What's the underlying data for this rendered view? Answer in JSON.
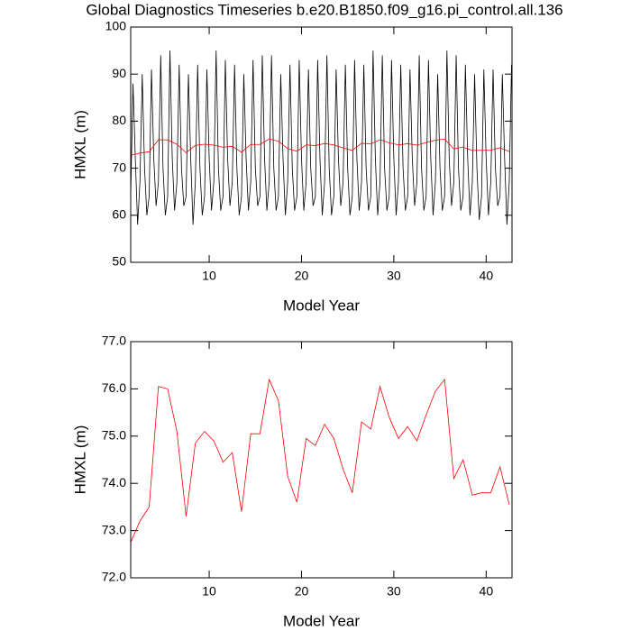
{
  "chart_data": [
    {
      "type": "line",
      "title": "Global Diagnostics Timeseries b.e20.B1850.f09_g16.pi_control.all.136",
      "x_label": "Model Year",
      "y_label": "HMXL (m)",
      "xlim": [
        1.5,
        42.8
      ],
      "ylim": [
        50,
        100
      ],
      "xticks": [
        10,
        20,
        30,
        40
      ],
      "yticks": [
        50,
        60,
        70,
        80,
        90,
        100
      ],
      "series": [
        {
          "color": "#000000",
          "x": [
            1.5,
            1.75,
            2,
            2.25,
            2.5,
            2.75,
            3,
            3.25,
            3.5,
            3.75,
            4,
            4.25,
            4.5,
            4.75,
            5,
            5.25,
            5.5,
            5.75,
            6,
            6.25,
            6.5,
            6.75,
            7,
            7.25,
            7.5,
            7.75,
            8,
            8.25,
            8.5,
            8.75,
            9,
            9.25,
            9.5,
            9.75,
            10,
            10.25,
            10.5,
            10.75,
            11,
            11.25,
            11.5,
            11.75,
            12,
            12.25,
            12.5,
            12.75,
            13,
            13.25,
            13.5,
            13.75,
            14,
            14.25,
            14.5,
            14.75,
            15,
            15.25,
            15.5,
            15.75,
            16,
            16.25,
            16.5,
            16.75,
            17,
            17.25,
            17.5,
            17.75,
            18,
            18.25,
            18.5,
            18.75,
            19,
            19.25,
            19.5,
            19.75,
            20,
            20.25,
            20.5,
            20.75,
            21,
            21.25,
            21.5,
            21.75,
            22,
            22.25,
            22.5,
            22.75,
            23,
            23.25,
            23.5,
            23.75,
            24,
            24.25,
            24.5,
            24.75,
            25,
            25.25,
            25.5,
            25.75,
            26,
            26.25,
            26.5,
            26.75,
            27,
            27.25,
            27.5,
            27.75,
            28,
            28.25,
            28.5,
            28.75,
            29,
            29.25,
            29.5,
            29.75,
            30,
            30.25,
            30.5,
            30.75,
            31,
            31.25,
            31.5,
            31.75,
            32,
            32.25,
            32.5,
            32.75,
            33,
            33.25,
            33.5,
            33.75,
            34,
            34.25,
            34.5,
            34.75,
            35,
            35.25,
            35.5,
            35.75,
            36,
            36.25,
            36.5,
            36.75,
            37,
            37.25,
            37.5,
            37.75,
            38,
            38.25,
            38.5,
            38.75,
            39,
            39.25,
            39.5,
            39.75,
            40,
            40.25,
            40.5,
            40.75,
            41,
            41.25,
            41.5,
            41.75,
            42,
            42.25,
            42.5,
            42.75
          ],
          "values": [
            64,
            88,
            72,
            58,
            67,
            90,
            70,
            60,
            64,
            91,
            72,
            62,
            67,
            94,
            70,
            60,
            64,
            95,
            72,
            61,
            67,
            92,
            70,
            62,
            64,
            90,
            72,
            58,
            67,
            92,
            70,
            60,
            64,
            91,
            72,
            61,
            67,
            95,
            70,
            61,
            64,
            93,
            72,
            62,
            67,
            92,
            70,
            60,
            64,
            90,
            72,
            61,
            67,
            93,
            70,
            62,
            64,
            94,
            72,
            61,
            67,
            94,
            70,
            61,
            64,
            90,
            72,
            60,
            67,
            92,
            70,
            61,
            64,
            93,
            72,
            61,
            67,
            91,
            70,
            62,
            64,
            93,
            72,
            60,
            67,
            94,
            70,
            60,
            64,
            91,
            72,
            62,
            67,
            92,
            70,
            60,
            64,
            93,
            72,
            61,
            67,
            92,
            70,
            61,
            64,
            95,
            72,
            60,
            67,
            94,
            70,
            61,
            64,
            93,
            72,
            60,
            67,
            92,
            70,
            61,
            64,
            91,
            72,
            62,
            67,
            94,
            70,
            61,
            64,
            93,
            72,
            60,
            67,
            90,
            70,
            61,
            64,
            95,
            72,
            62,
            67,
            94,
            70,
            61,
            64,
            92,
            72,
            60,
            67,
            90,
            70,
            59,
            64,
            91,
            72,
            60,
            67,
            91,
            70,
            62,
            64,
            90,
            72,
            58,
            67,
            92
          ]
        },
        {
          "color": "#ff0000",
          "x": [
            1.5,
            2.5,
            3.5,
            4.5,
            5.5,
            6.5,
            7.5,
            8.5,
            9.5,
            10.5,
            11.5,
            12.5,
            13.5,
            14.5,
            15.5,
            16.5,
            17.5,
            18.5,
            19.5,
            20.5,
            21.5,
            22.5,
            23.5,
            24.5,
            25.5,
            26.5,
            27.5,
            28.5,
            29.5,
            30.5,
            31.5,
            32.5,
            33.5,
            34.5,
            35.5,
            36.5,
            37.5,
            38.5,
            39.5,
            40.5,
            41.5,
            42.5
          ],
          "values": [
            72.75,
            73.2,
            73.5,
            76.05,
            76,
            75.1,
            73.3,
            74.85,
            75.1,
            74.9,
            74.45,
            74.65,
            73.4,
            75.05,
            75.05,
            76.2,
            75.75,
            74.15,
            73.6,
            74.95,
            74.8,
            75.25,
            74.95,
            74.3,
            73.8,
            75.3,
            75.15,
            76.05,
            75.4,
            74.95,
            75.2,
            74.9,
            75.45,
            75.95,
            76.2,
            74.1,
            74.5,
            73.75,
            73.8,
            73.8,
            74.35,
            73.55
          ]
        }
      ]
    },
    {
      "type": "line",
      "x_label": "Model Year",
      "y_label": "HMXL (m)",
      "xlim": [
        1.5,
        42.8
      ],
      "ylim": [
        72,
        77
      ],
      "xticks": [
        10,
        20,
        30,
        40
      ],
      "yticks": [
        {
          "value": 72,
          "label": "72.0"
        },
        {
          "value": 73,
          "label": "73.0"
        },
        {
          "value": 74,
          "label": "74.0"
        },
        {
          "value": 75,
          "label": "75.0"
        },
        {
          "value": 76,
          "label": "76.0"
        },
        {
          "value": 77,
          "label": "77.0"
        }
      ],
      "series": [
        {
          "color": "#ff0000",
          "x": [
            1.5,
            2.5,
            3.5,
            4.5,
            5.5,
            6.5,
            7.5,
            8.5,
            9.5,
            10.5,
            11.5,
            12.5,
            13.5,
            14.5,
            15.5,
            16.5,
            17.5,
            18.5,
            19.5,
            20.5,
            21.5,
            22.5,
            23.5,
            24.5,
            25.5,
            26.5,
            27.5,
            28.5,
            29.5,
            30.5,
            31.5,
            32.5,
            33.5,
            34.5,
            35.5,
            36.5,
            37.5,
            38.5,
            39.5,
            40.5,
            41.5,
            42.5
          ],
          "values": [
            72.75,
            73.2,
            73.5,
            76.05,
            76,
            75.1,
            73.3,
            74.85,
            75.1,
            74.9,
            74.45,
            74.65,
            73.4,
            75.05,
            75.05,
            76.2,
            75.75,
            74.15,
            73.6,
            74.95,
            74.8,
            75.25,
            74.95,
            74.3,
            73.8,
            75.3,
            75.15,
            76.05,
            75.4,
            74.95,
            75.2,
            74.9,
            75.45,
            75.95,
            76.2,
            74.1,
            74.5,
            73.75,
            73.8,
            73.8,
            74.35,
            73.55
          ]
        }
      ]
    }
  ]
}
